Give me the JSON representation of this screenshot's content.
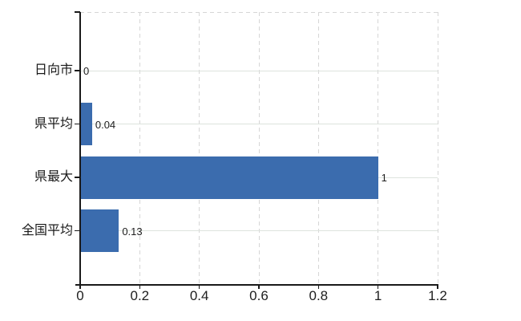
{
  "chart_data": {
    "type": "bar",
    "orientation": "horizontal",
    "title": "",
    "xlabel": "",
    "ylabel": "",
    "legend": null,
    "categories": [
      "日向市",
      "県平均",
      "県最大",
      "全国平均"
    ],
    "values": [
      0,
      0.04,
      1,
      0.13
    ],
    "value_labels": [
      "0",
      "0.04",
      "1",
      "0.13"
    ],
    "xlim": [
      0,
      1.2
    ],
    "x_tick_values": [
      0,
      0.2,
      0.4,
      0.6,
      0.8,
      1,
      1.2
    ],
    "x_tick_labels": [
      "0",
      "0.2",
      "0.4",
      "0.6",
      "0.8",
      "1",
      "1.2"
    ],
    "grid": {
      "vertical_gridlines": "dashed",
      "top_border": "dashed",
      "category_gridlines": "solid"
    },
    "colors": {
      "bar": "#3b6cae",
      "axis": "#1a1a1a",
      "dashed_grid": "#d6d6d6",
      "category_grid": "#dde3dd",
      "text": "#202020"
    }
  }
}
